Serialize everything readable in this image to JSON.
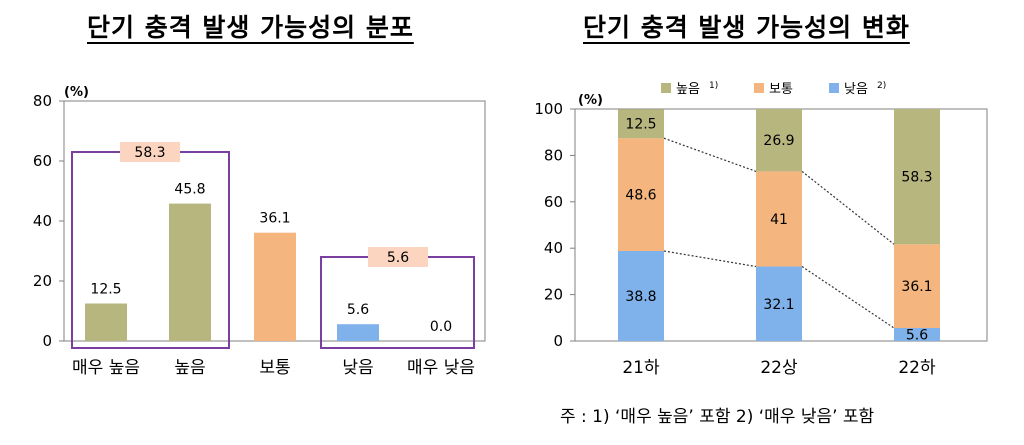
{
  "chart_data": [
    {
      "type": "bar",
      "title": "단기 충격 발생 가능성의 분포",
      "unit_label": "(%)",
      "categories": [
        "매우 높음",
        "높음",
        "보통",
        "낮음",
        "매우 낮음"
      ],
      "values": [
        12.5,
        45.8,
        36.1,
        5.6,
        0.0
      ],
      "value_labels": [
        "12.5",
        "45.8",
        "36.1",
        "5.6",
        "0.0"
      ],
      "colors": [
        "#b8b67f",
        "#b8b67f",
        "#f5b57f",
        "#7fb1ea",
        "#7fb1ea"
      ],
      "ylim": [
        0,
        80
      ],
      "yticks": [
        0,
        20,
        40,
        60,
        80
      ],
      "group_boxes": [
        {
          "label": "58.3",
          "members": [
            "매우 높음",
            "높음"
          ],
          "color": "#7b3fa0",
          "label_bg": "#fbd5c0"
        },
        {
          "label": "5.6",
          "members": [
            "낮음",
            "매우 낮음"
          ],
          "color": "#7b3fa0",
          "label_bg": "#fbd5c0"
        }
      ],
      "grid": false
    },
    {
      "type": "bar",
      "stacked": true,
      "title": "단기 충격 발생 가능성의 변화",
      "unit_label": "(%)",
      "categories": [
        "21하",
        "22상",
        "22하"
      ],
      "series": [
        {
          "name": "낮음",
          "sup": "2)",
          "color": "#7fb1ea",
          "values": [
            38.8,
            32.1,
            5.6
          ]
        },
        {
          "name": "보통",
          "sup": "",
          "color": "#f5b57f",
          "values": [
            48.6,
            41.0,
            36.1
          ]
        },
        {
          "name": "높음",
          "sup": "1)",
          "color": "#b8b67f",
          "values": [
            12.5,
            26.9,
            58.3
          ]
        }
      ],
      "legend_order": [
        "높음",
        "보통",
        "낮음"
      ],
      "legend_position": "top",
      "ylim": [
        0,
        100
      ],
      "yticks": [
        0,
        20,
        40,
        60,
        80,
        100
      ],
      "connector_lines": true,
      "grid": false
    }
  ],
  "footnote": "주 : 1) ‘매우 높음’ 포함   2) ‘매우 낮음’ 포함"
}
